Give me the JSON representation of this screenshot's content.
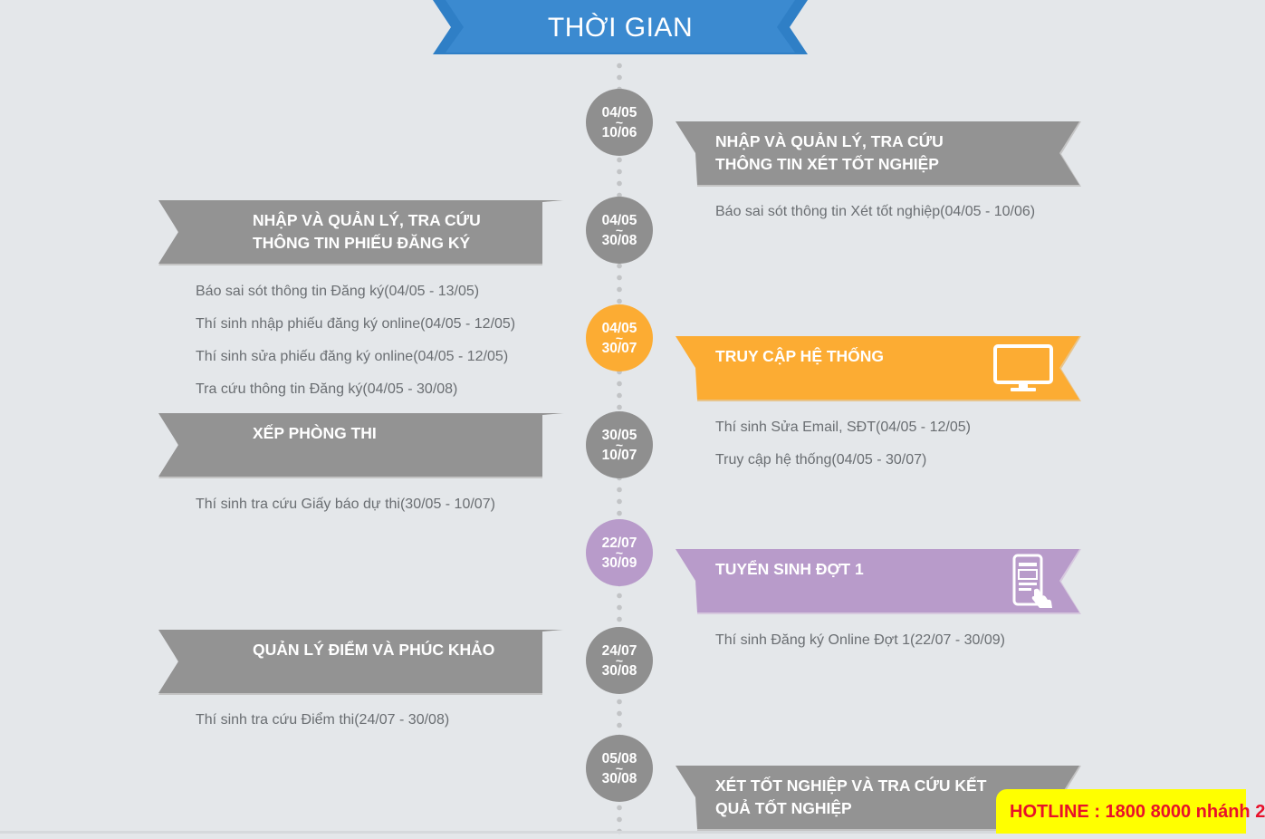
{
  "header": {
    "title": "THỜI GIAN"
  },
  "colors": {
    "gray": "#8f8f8f",
    "orange": "#fcac33",
    "purple": "#b89bca",
    "blue": "#3b8ad0",
    "hotline_bg": "#ffff00",
    "hotline_text": "#e8102a"
  },
  "timeline": [
    {
      "start": "04/05",
      "sep": "~",
      "end": "10/06"
    },
    {
      "start": "04/05",
      "sep": "~",
      "end": "30/08"
    },
    {
      "start": "04/05",
      "sep": "~",
      "end": "30/07"
    },
    {
      "start": "30/05",
      "sep": "~",
      "end": "10/07"
    },
    {
      "start": "22/07",
      "sep": "~",
      "end": "30/09"
    },
    {
      "start": "24/07",
      "sep": "~",
      "end": "30/08"
    },
    {
      "start": "05/08",
      "sep": "~",
      "end": "30/08"
    }
  ],
  "sections": [
    {
      "title_line1": "NHẬP VÀ QUẢN LÝ, TRA CỨU",
      "title_line2": "THÔNG TIN XÉT TỐT NGHIỆP",
      "items": [
        "Báo sai sót thông tin Xét tốt nghiệp(04/05 - 10/06)"
      ]
    },
    {
      "title_line1": "NHẬP VÀ QUẢN LÝ, TRA CỨU",
      "title_line2": "THÔNG TIN PHIẾU ĐĂNG KÝ",
      "items": [
        "Báo sai sót thông tin Đăng ký(04/05 - 13/05)",
        "Thí sinh nhập phiếu đăng ký online(04/05 - 12/05)",
        "Thí sinh sửa phiếu đăng ký online(04/05 - 12/05)",
        "Tra cứu thông tin Đăng ký(04/05 - 30/08)"
      ]
    },
    {
      "title_line1": "TRUY CẬP HỆ THỐNG",
      "icon": "monitor-icon",
      "items": [
        "Thí sinh Sửa Email, SĐT(04/05 - 12/05)",
        "Truy cập hệ thống(04/05 - 30/07)"
      ]
    },
    {
      "title_line1": "XẾP PHÒNG THI",
      "items": [
        "Thí sinh tra cứu Giấy báo dự thi(30/05 - 10/07)"
      ]
    },
    {
      "title_line1": "TUYỂN SINH ĐỢT 1",
      "icon": "mobile-touch-icon",
      "items": [
        "Thí sinh Đăng ký Online Đợt 1(22/07 - 30/09)"
      ]
    },
    {
      "title_line1": "QUẢN LÝ ĐIỂM VÀ PHÚC KHẢO",
      "items": [
        "Thí sinh tra cứu Điểm thi(24/07 - 30/08)"
      ]
    },
    {
      "title_line1": "XÉT TỐT NGHIỆP VÀ TRA CỨU KẾT",
      "title_line2": "QUẢ TỐT NGHIỆP",
      "items": []
    }
  ],
  "hotline": {
    "text": "HOTLINE : 1800 8000 nhánh 2"
  }
}
